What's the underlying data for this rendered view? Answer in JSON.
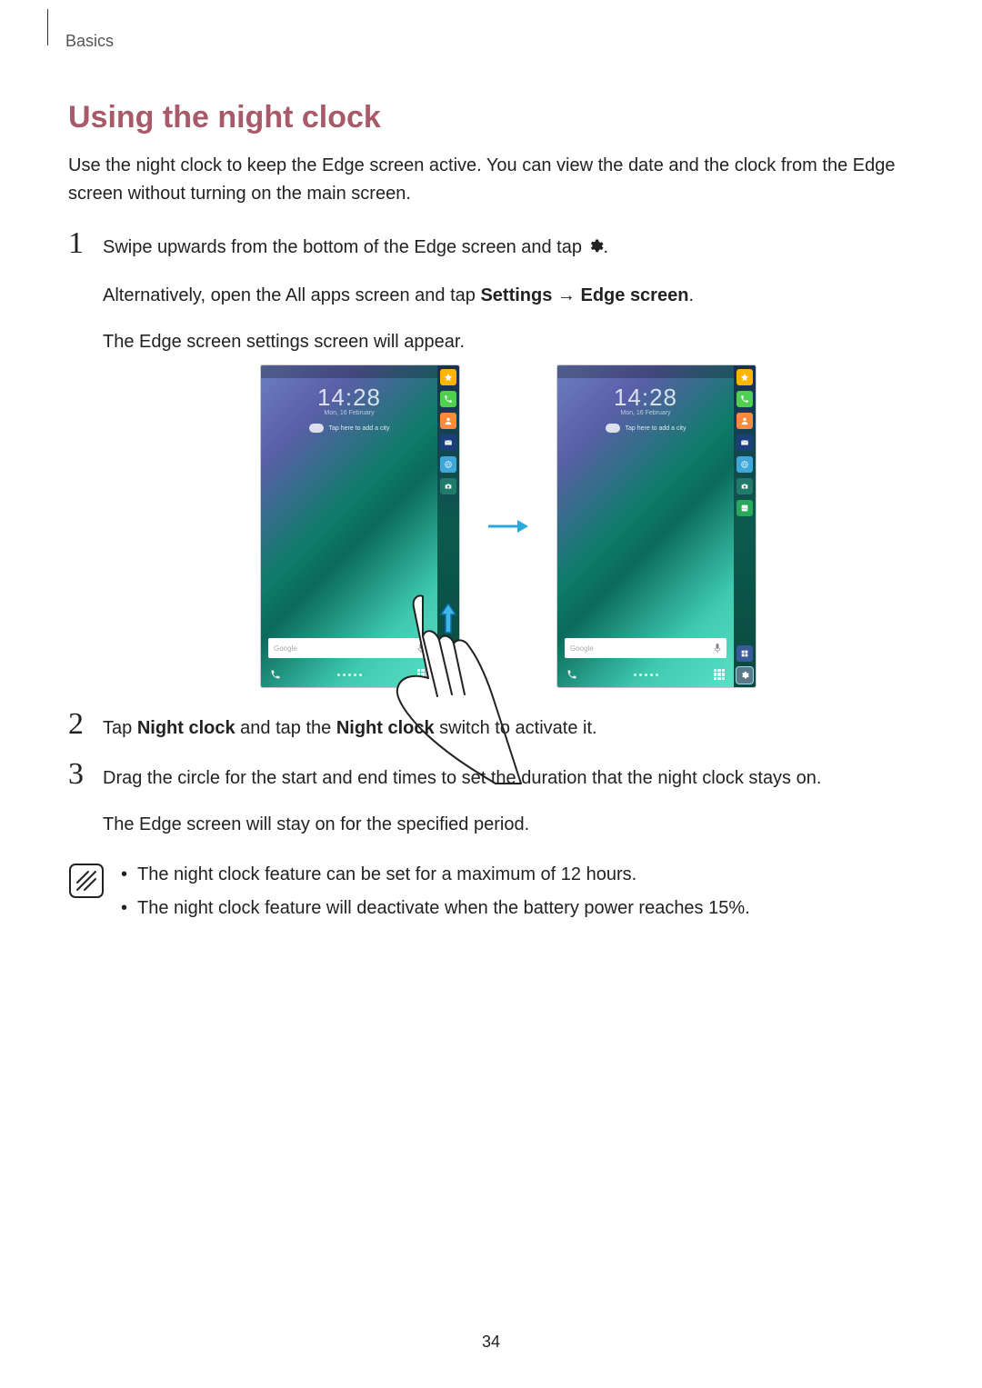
{
  "header": {
    "section": "Basics"
  },
  "title": "Using the night clock",
  "intro": "Use the night clock to keep the Edge screen active. You can view the date and the clock from the Edge screen without turning on the main screen.",
  "steps": {
    "s1": {
      "p1a": "Swipe upwards from the bottom of the Edge screen and tap ",
      "p1b": ".",
      "p2a": "Alternatively, open the All apps screen and tap ",
      "p2b_bold": "Settings",
      "p2c": " → ",
      "p2d_bold": "Edge screen",
      "p2e": ".",
      "p3": "The Edge screen settings screen will appear."
    },
    "s2": {
      "p1a": "Tap ",
      "p1b_bold": "Night clock",
      "p1c": " and tap the ",
      "p1d_bold": "Night clock",
      "p1e": " switch to activate it."
    },
    "s3": {
      "p1": "Drag the circle for the start and end times to set the duration that the night clock stays on.",
      "p2": "The Edge screen will stay on for the specified period."
    }
  },
  "phone": {
    "time": "14:28",
    "date": "Mon, 16 February",
    "weather_text": "Tap here to add a city",
    "search_label": "Google",
    "edge_icons_a": [
      "star",
      "phonei",
      "cont",
      "mail",
      "globe",
      "cam"
    ],
    "edge_icons_b": [
      "star",
      "phonei",
      "cont",
      "mail",
      "globe",
      "cam",
      "gal",
      "multi",
      "cog"
    ]
  },
  "note": {
    "li1": "The night clock feature can be set for a maximum of 12 hours.",
    "li2": "The night clock feature will deactivate when the battery power reaches 15%."
  },
  "page_number": "34",
  "colors": {
    "title_color": "#a85a6a",
    "arrow_color": "#2aa8e0",
    "swipe_arrow_stroke": "#0a6ab0",
    "swipe_arrow_fill": "#3fb8e8"
  }
}
